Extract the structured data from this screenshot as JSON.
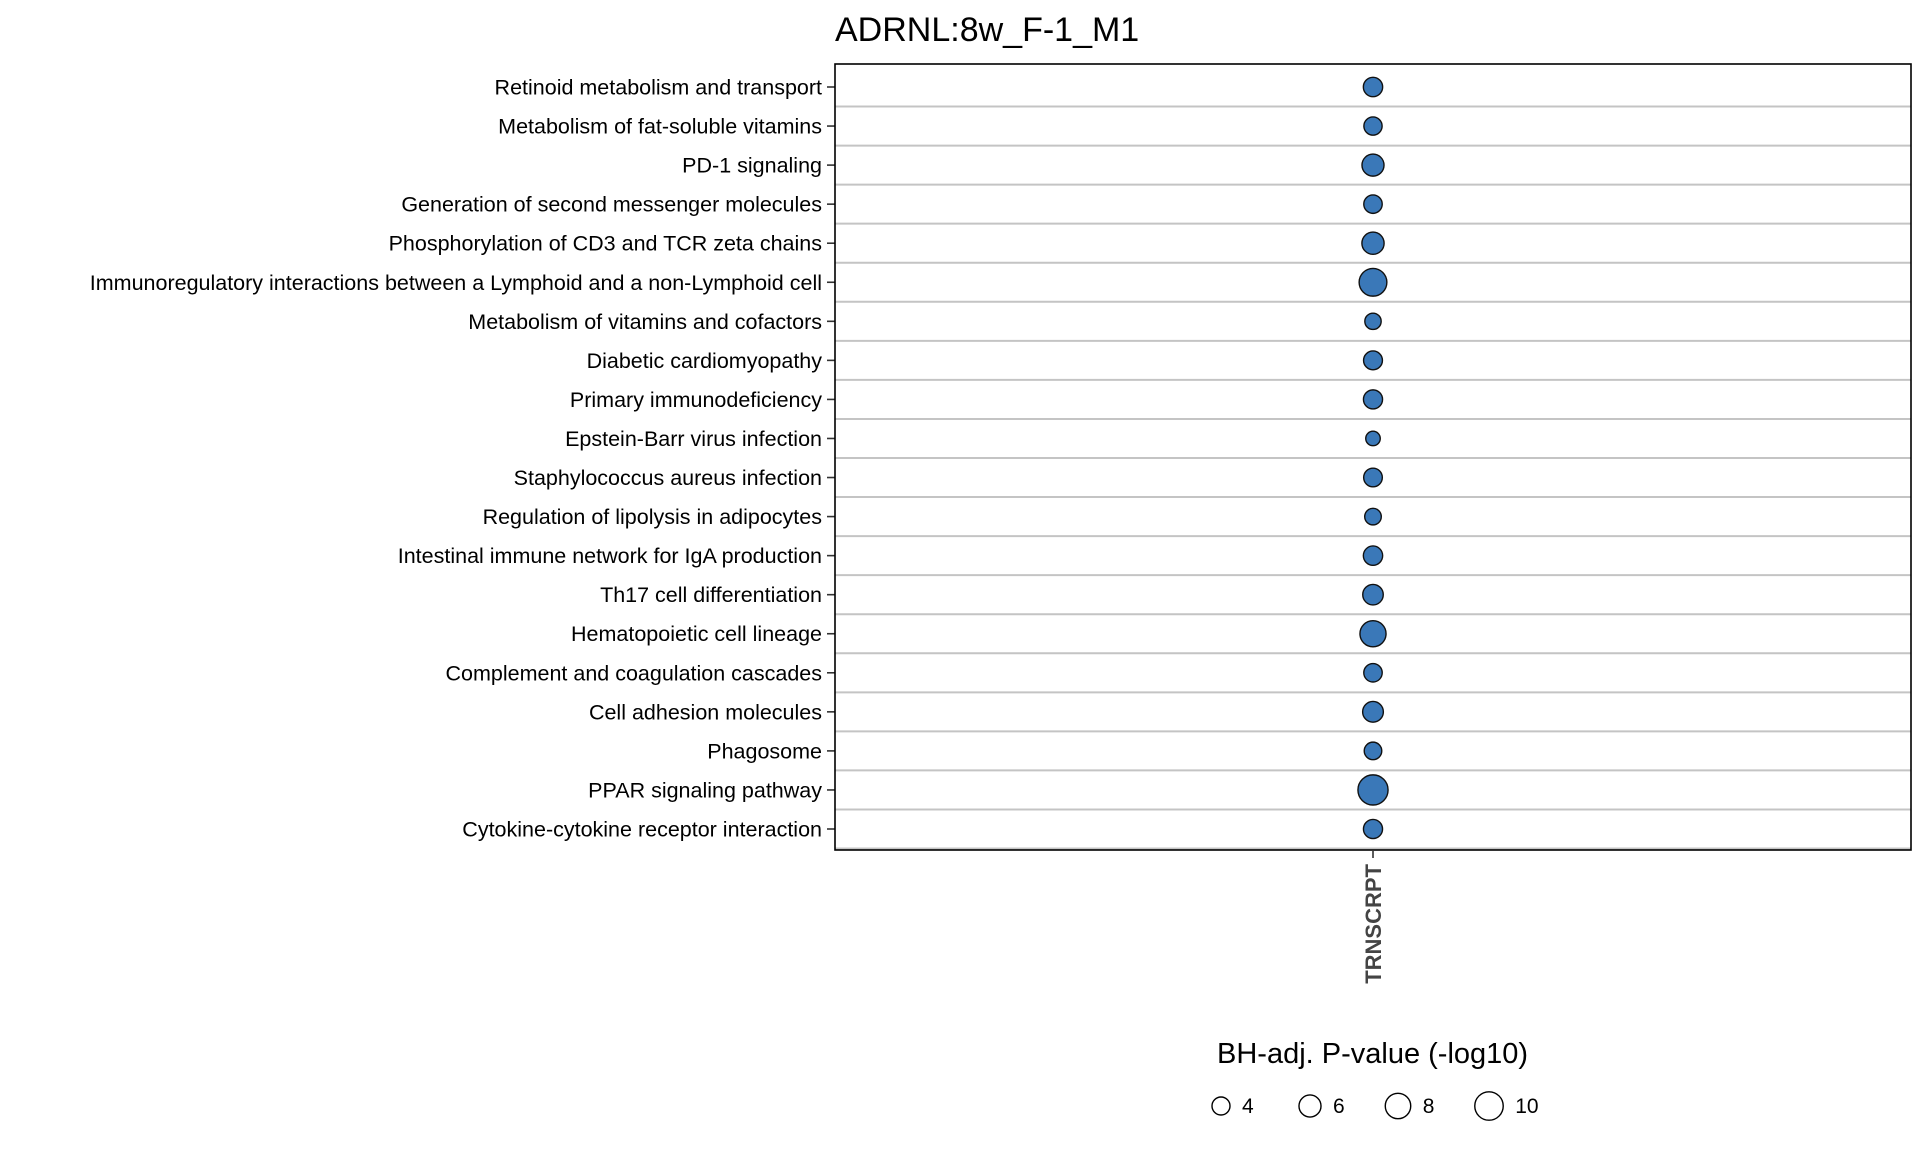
{
  "chart_data": {
    "type": "scatter",
    "title": "ADRNL:8w_F-1_M1",
    "x_categories": [
      "TRNSCRPT"
    ],
    "rows": [
      {
        "label": "Retinoid metabolism and transport",
        "value": 4.6
      },
      {
        "label": "Metabolism of fat-soluble vitamins",
        "value": 4.1
      },
      {
        "label": "PD-1 signaling",
        "value": 6.0
      },
      {
        "label": "Generation of second messenger molecules",
        "value": 4.2
      },
      {
        "label": "Phosphorylation of CD3 and TCR zeta chains",
        "value": 6.1
      },
      {
        "label": "Immunoregulatory interactions between a Lymphoid and a non-Lymphoid cell",
        "value": 9.5
      },
      {
        "label": "Metabolism of vitamins and cofactors",
        "value": 3.3
      },
      {
        "label": "Diabetic cardiomyopathy",
        "value": 4.4
      },
      {
        "label": "Primary immunodeficiency",
        "value": 4.5
      },
      {
        "label": "Epstein-Barr virus infection",
        "value": 2.6
      },
      {
        "label": "Staphylococcus aureus infection",
        "value": 4.3
      },
      {
        "label": "Regulation of lipolysis in adipocytes",
        "value": 3.4
      },
      {
        "label": "Intestinal immune network for IgA production",
        "value": 4.6
      },
      {
        "label": "Th17 cell differentiation",
        "value": 5.2
      },
      {
        "label": "Hematopoietic cell lineage",
        "value": 8.4
      },
      {
        "label": "Complement and coagulation cascades",
        "value": 4.2
      },
      {
        "label": "Cell adhesion molecules",
        "value": 5.3
      },
      {
        "label": "Phagosome",
        "value": 3.8
      },
      {
        "label": "PPAR signaling pathway",
        "value": 11.2
      },
      {
        "label": "Cytokine-cytokine receptor interaction",
        "value": 4.5
      }
    ],
    "size_legend": {
      "title": "BH-adj. P-value (-log10)",
      "values": [
        4,
        6,
        8,
        10
      ]
    },
    "colors": {
      "point_fill": "#3a78b8",
      "point_stroke": "#111111",
      "row_line": "#c4c4c4",
      "panel_border": "#000000"
    }
  }
}
